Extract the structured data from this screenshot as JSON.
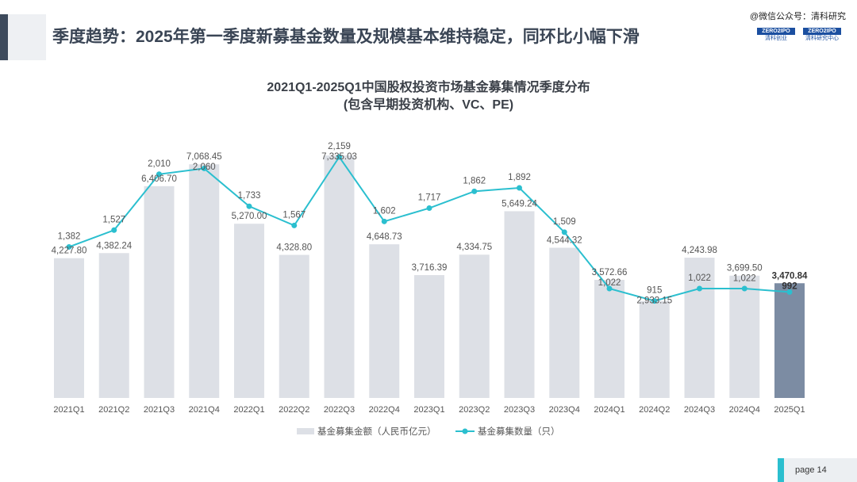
{
  "header": {
    "title": "季度趋势：2025年第一季度新募基金数量及规模基本维持稳定，同环比小幅下滑",
    "watermark": "@微信公众号：清科研究",
    "logos": [
      {
        "brand": "ZERO2IPO",
        "sub": "清科创业"
      },
      {
        "brand": "ZERO2IPO",
        "sub": "清科研究中心"
      }
    ]
  },
  "footer": {
    "page": "page  14"
  },
  "colors": {
    "bar": "#dde0e6",
    "bar_highlight": "#7c8ca3",
    "line": "#2bbfcf"
  },
  "chart_data": {
    "type": "bar+line",
    "title": "2021Q1-2025Q1中国股权投资市场基金募集情况季度分布",
    "subtitle": "(包含早期投资机构、VC、PE)",
    "categories": [
      "2021Q1",
      "2021Q2",
      "2021Q3",
      "2021Q4",
      "2022Q1",
      "2022Q2",
      "2022Q3",
      "2022Q4",
      "2023Q1",
      "2023Q2",
      "2023Q3",
      "2023Q4",
      "2024Q1",
      "2024Q2",
      "2024Q3",
      "2024Q4",
      "2025Q1"
    ],
    "series": [
      {
        "name": "基金募集金额（人民币亿元）",
        "type": "bar",
        "values": [
          4227.8,
          4382.24,
          6406.7,
          7068.45,
          5270.0,
          4328.8,
          7335.03,
          4648.73,
          3716.39,
          4334.75,
          5649.24,
          4544.32,
          3572.66,
          2933.15,
          4243.98,
          3699.5,
          3470.84
        ],
        "labels": [
          "4,227.80",
          "4,382.24",
          "6,406.70",
          "7,068.45",
          "5,270.00",
          "4,328.80",
          "7,335.03",
          "4,648.73",
          "3,716.39",
          "4,334.75",
          "5,649.24",
          "4,544.32",
          "3,572.66",
          "2,933.15",
          "4,243.98",
          "3,699.50",
          "3,470.84"
        ]
      },
      {
        "name": "基金募集数量（只）",
        "type": "line",
        "values": [
          1382,
          1527,
          2010,
          2060,
          1733,
          1567,
          2159,
          1602,
          1717,
          1862,
          1892,
          1509,
          1022,
          915,
          1022,
          1022,
          992
        ],
        "labels": [
          "1,382",
          "1,527",
          "2,010",
          "2,060",
          "1,733",
          "1,567",
          "2,159",
          "1,602",
          "1,717",
          "1,862",
          "1,892",
          "1,509",
          "1,022",
          "915",
          "1,022",
          "1,022",
          "992"
        ]
      }
    ],
    "legend": "bottom",
    "grid": false
  }
}
